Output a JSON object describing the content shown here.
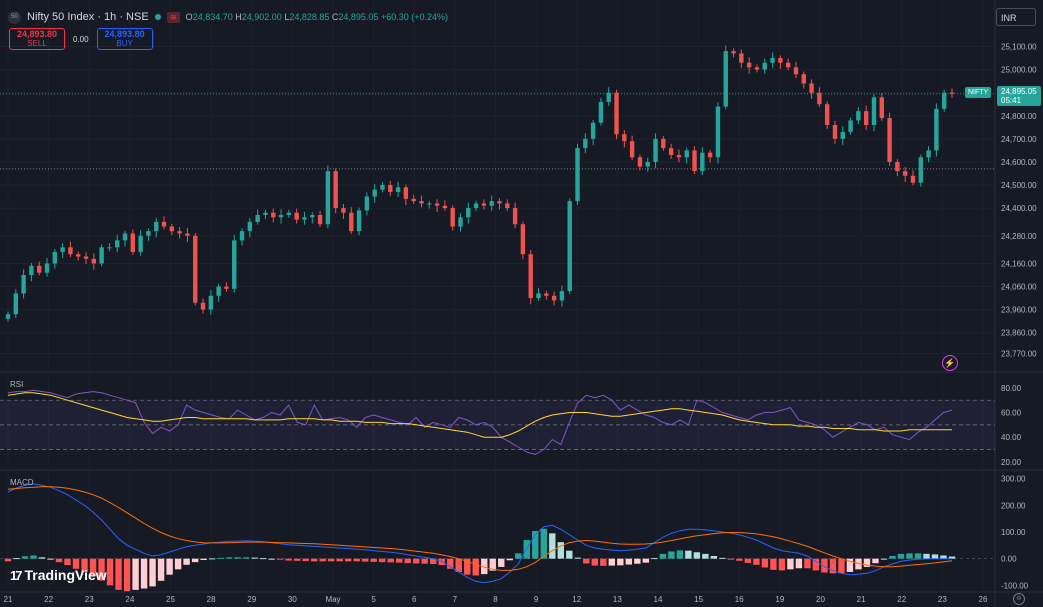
{
  "header": {
    "symbol_logo": "50",
    "title": "Nifty 50 Index · 1h · NSE",
    "ohlc": {
      "o_label": "O",
      "o": "24,834.70",
      "h_label": "H",
      "h": "24,902.00",
      "l_label": "L",
      "l": "24,828.85",
      "c_label": "C",
      "c": "24,895.05",
      "change": "+60.30 (+0.24%)"
    },
    "tag_icon": "tag-icon"
  },
  "trade": {
    "sell_price": "24,893.80",
    "sell_label": "SELL",
    "spread": "0.00",
    "buy_price": "24,893.80",
    "buy_label": "BUY"
  },
  "currency": "INR",
  "last_price": {
    "symbol": "NIFTY",
    "value": "24,895.05",
    "countdown": "05:41"
  },
  "panes": {
    "rsi_label": "RSI",
    "macd_label": "MACD"
  },
  "brand": {
    "mark": "17",
    "name": "TradingView"
  },
  "colors": {
    "background": "#161a25",
    "up": "#26a69a",
    "down": "#ef5350",
    "rsi_line": "#7e57c2",
    "rsi_ma": "#fdd835",
    "macd_line": "#2962ff",
    "signal_line": "#ff6d00",
    "hist_up_strong": "#26a69a",
    "hist_up_weak": "#b2dfdb",
    "hist_down_strong": "#ff5252",
    "hist_down_weak": "#ffcdd2"
  },
  "chart_data": [
    {
      "type": "candlestick",
      "pane": "price",
      "title": "Nifty 50 Index · 1h · NSE",
      "y_ticks": [
        "25,100.00",
        "25,000.00",
        "24,900.00",
        "24,800.00",
        "24,700.00",
        "24,600.00",
        "24,500.00",
        "24,400.00",
        "24,280.00",
        "24,160.00",
        "24,060.00",
        "23,960.00",
        "23,860.00",
        "23,770.00"
      ],
      "x_ticks": [
        "21",
        "22",
        "23",
        "24",
        "25",
        "28",
        "29",
        "30",
        "May",
        "5",
        "6",
        "7",
        "8",
        "9",
        "12",
        "13",
        "14",
        "15",
        "16",
        "19",
        "20",
        "21",
        "22",
        "23",
        "26"
      ],
      "ylim": [
        23720,
        25150
      ],
      "close_series": [
        23940,
        24030,
        24110,
        24150,
        24120,
        24160,
        24210,
        24230,
        24200,
        24190,
        24180,
        24160,
        24230,
        24230,
        24260,
        24290,
        24210,
        24280,
        24300,
        24340,
        24320,
        24300,
        24290,
        24280,
        23990,
        23960,
        24020,
        24060,
        24050,
        24260,
        24300,
        24340,
        24370,
        24380,
        24360,
        24370,
        24380,
        24350,
        24360,
        24370,
        24330,
        24560,
        24400,
        24380,
        24300,
        24390,
        24450,
        24480,
        24500,
        24470,
        24490,
        24440,
        24430,
        24420,
        24420,
        24410,
        24400,
        24320,
        24360,
        24400,
        24420,
        24410,
        24430,
        24420,
        24400,
        24330,
        24200,
        24010,
        24030,
        24020,
        24000,
        24040,
        24430,
        24660,
        24700,
        24770,
        24860,
        24900,
        24720,
        24690,
        24620,
        24580,
        24600,
        24700,
        24660,
        24630,
        24620,
        24650,
        24560,
        24640,
        24620,
        24840,
        25080,
        25070,
        25030,
        25010,
        25000,
        25030,
        25050,
        25030,
        25010,
        24980,
        24940,
        24900,
        24850,
        24760,
        24700,
        24730,
        24780,
        24820,
        24760,
        24880,
        24790,
        24600,
        24560,
        24540,
        24510,
        24620,
        24650,
        24830,
        24900,
        24895.05
      ],
      "last": 24895.05
    },
    {
      "type": "line",
      "pane": "rsi",
      "title": "RSI",
      "y_ticks": [
        "80.00",
        "60.00",
        "40.00",
        "20.00"
      ],
      "ylim": [
        15,
        88
      ],
      "band": [
        30,
        70
      ],
      "series": [
        {
          "name": "RSI",
          "values": [
            76,
            77,
            77,
            78,
            77,
            76,
            74,
            72,
            75,
            76,
            77,
            76,
            74,
            72,
            70,
            68,
            52,
            43,
            48,
            45,
            50,
            66,
            62,
            60,
            58,
            56,
            55,
            62,
            58,
            54,
            56,
            60,
            58,
            66,
            52,
            50,
            66,
            54,
            55,
            56,
            54,
            48,
            56,
            58,
            56,
            54,
            52,
            50,
            56,
            48,
            52,
            50,
            48,
            56,
            54,
            50,
            52,
            48,
            40,
            36,
            32,
            28,
            26,
            30,
            38,
            34,
            52,
            68,
            74,
            72,
            74,
            70,
            62,
            66,
            62,
            58,
            56,
            52,
            50,
            54,
            50,
            70,
            68,
            64,
            60,
            58,
            56,
            54,
            58,
            60,
            60,
            62,
            64,
            54,
            52,
            50,
            46,
            40,
            44,
            48,
            52,
            50,
            46,
            48,
            42,
            40,
            38,
            44,
            48,
            54,
            60,
            62
          ]
        },
        {
          "name": "RSI-based MA",
          "values": [
            74,
            75,
            76,
            76,
            75,
            74,
            72,
            70,
            68,
            66,
            64,
            62,
            60,
            58,
            56,
            55,
            54,
            53,
            53,
            54,
            55,
            56,
            56,
            55,
            55,
            55,
            55,
            55,
            55,
            54,
            54,
            54,
            54,
            55,
            55,
            55,
            55,
            54,
            54,
            53,
            53,
            53,
            52,
            52,
            52,
            51,
            51,
            51,
            50,
            49,
            48,
            47,
            46,
            45,
            44,
            42,
            40,
            40,
            40,
            42,
            45,
            49,
            53,
            56,
            58,
            59,
            60,
            60,
            60,
            59,
            58,
            57,
            57,
            58,
            59,
            60,
            61,
            62,
            63,
            63,
            62,
            61,
            60,
            59,
            58,
            56,
            54,
            53,
            52,
            51,
            50,
            50,
            50,
            49,
            49,
            48,
            48,
            47,
            47,
            47,
            46,
            46,
            46,
            45,
            45,
            45,
            46,
            46,
            46,
            46,
            46,
            46
          ]
        }
      ]
    },
    {
      "type": "line+bar",
      "pane": "macd",
      "title": "MACD",
      "y_ticks": [
        "300.00",
        "200.00",
        "100.00",
        "0.00",
        "-100.00"
      ],
      "ylim": [
        -110,
        310
      ],
      "series": [
        {
          "name": "MACD",
          "values": [
            250,
            265,
            275,
            280,
            275,
            268,
            255,
            240,
            220,
            200,
            175,
            145,
            110,
            75,
            50,
            35,
            20,
            10,
            15,
            25,
            35,
            45,
            50,
            55,
            60,
            62,
            65,
            66,
            67,
            66,
            64,
            60,
            56,
            52,
            50,
            48,
            46,
            44,
            42,
            40,
            38,
            36,
            33,
            30,
            27,
            24,
            20,
            15,
            10,
            5,
            0,
            -10,
            -30,
            -50,
            -70,
            -85,
            -90,
            -85,
            -75,
            -50,
            -20,
            40,
            90,
            120,
            125,
            110,
            90,
            70,
            50,
            40,
            35,
            32,
            30,
            32,
            35,
            40,
            60,
            80,
            95,
            105,
            110,
            110,
            108,
            104,
            100,
            95,
            90,
            80,
            70,
            55,
            40,
            30,
            25,
            20,
            10,
            -10,
            -30,
            -45,
            -55,
            -60,
            -58,
            -55,
            -45,
            -30,
            -20,
            -10,
            -5,
            -2,
            -1,
            0,
            0,
            0
          ]
        },
        {
          "name": "Signal",
          "values": [
            260,
            263,
            266,
            268,
            270,
            270,
            268,
            264,
            258,
            250,
            240,
            227,
            210,
            192,
            172,
            152,
            132,
            114,
            98,
            85,
            75,
            68,
            63,
            60,
            59,
            59,
            60,
            61,
            62,
            62,
            62,
            61,
            60,
            59,
            58,
            57,
            56,
            54,
            52,
            50,
            48,
            46,
            44,
            42,
            40,
            38,
            35,
            32,
            28,
            24,
            20,
            14,
            8,
            0,
            -10,
            -22,
            -32,
            -40,
            -44,
            -44,
            -40,
            -30,
            -14,
            8,
            30,
            48,
            60,
            66,
            68,
            66,
            62,
            58,
            55,
            54,
            54,
            55,
            58,
            62,
            68,
            74,
            80,
            86,
            90,
            94,
            97,
            98,
            98,
            96,
            93,
            88,
            82,
            74,
            65,
            56,
            46,
            34,
            22,
            10,
            0,
            -10,
            -18,
            -24,
            -28,
            -30,
            -30,
            -28,
            -25,
            -22,
            -19,
            -16,
            -12,
            -8
          ]
        }
      ]
    }
  ]
}
